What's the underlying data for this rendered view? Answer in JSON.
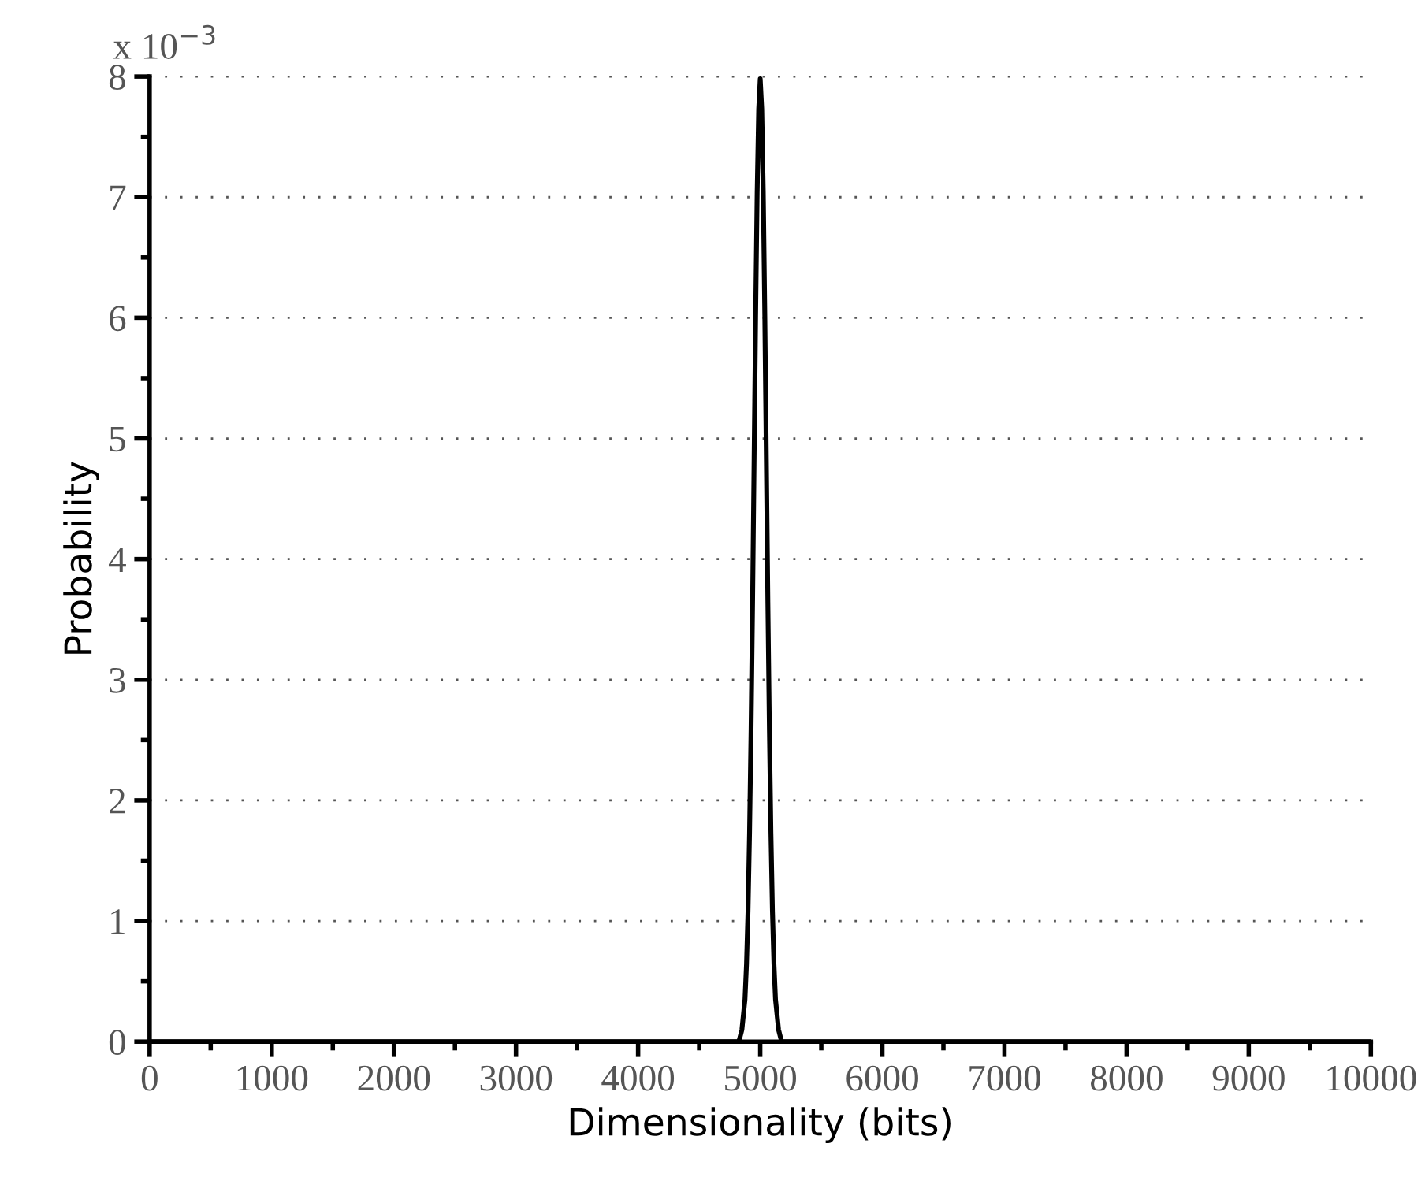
{
  "chart_data": {
    "type": "line",
    "xlabel": "Dimensionality (bits)",
    "ylabel": "Probability",
    "annotations": [
      "x 10$^{−3}$"
    ],
    "x": [
      0,
      4800,
      4825,
      4850,
      4875,
      4887.5,
      4900,
      4912.5,
      4925,
      4937.5,
      4950,
      4962.5,
      4975,
      4987.5,
      5000,
      5012.5,
      5025,
      5037.5,
      5050,
      5062.5,
      5075,
      5087.5,
      5100,
      5112.5,
      5125,
      5150,
      5175,
      5200,
      10000
    ],
    "series": [
      {
        "color": "#000000",
        "values": [
          0,
          0,
          0,
          0.1,
          0.35,
          0.64,
          1.08,
          1.73,
          2.59,
          3.65,
          4.84,
          6.02,
          7.04,
          7.73,
          7.98,
          7.73,
          7.04,
          6.02,
          4.84,
          3.65,
          2.59,
          1.73,
          1.08,
          0.64,
          0.35,
          0.1,
          0,
          0,
          0
        ]
      }
    ],
    "xlim": [
      0,
      10000
    ],
    "xticks": [
      0,
      1000,
      2000,
      3000,
      4000,
      5000,
      6000,
      7000,
      8000,
      9000,
      10000
    ],
    "ylim": [
      0,
      8
    ],
    "yticks": [
      0,
      1,
      2,
      3,
      4,
      5,
      6,
      7,
      8
    ],
    "grid": "y",
    "marker": "none",
    "line_style": "solid"
  }
}
